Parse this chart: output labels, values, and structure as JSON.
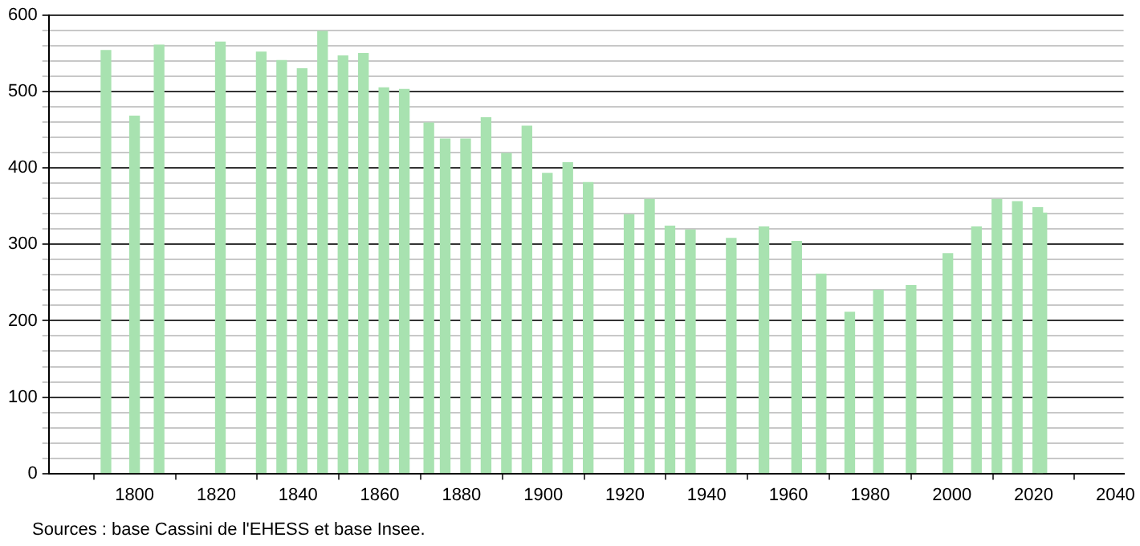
{
  "chart_data": {
    "type": "bar",
    "x": [
      1793,
      1800,
      1806,
      1821,
      1831,
      1836,
      1841,
      1846,
      1851,
      1856,
      1861,
      1866,
      1872,
      1876,
      1881,
      1886,
      1891,
      1896,
      1901,
      1906,
      1911,
      1921,
      1926,
      1931,
      1936,
      1946,
      1954,
      1962,
      1968,
      1975,
      1982,
      1990,
      1999,
      2006,
      2011,
      2016,
      2021,
      2022
    ],
    "values": [
      554,
      468,
      561,
      565,
      552,
      541,
      530,
      579,
      547,
      550,
      505,
      503,
      459,
      438,
      438,
      466,
      419,
      455,
      393,
      407,
      381,
      339,
      359,
      324,
      319,
      308,
      323,
      304,
      261,
      211,
      240,
      246,
      288,
      323,
      359,
      356,
      348,
      341
    ],
    "color": "#a8e2b0",
    "xlim": [
      1779,
      2042
    ],
    "xticks": [
      1800,
      1820,
      1840,
      1860,
      1880,
      1900,
      1920,
      1940,
      1960,
      1980,
      2000,
      2020,
      2040
    ],
    "ylim": [
      0,
      600
    ],
    "yticks": [
      0,
      {
        "value": 20,
        "label": null
      },
      {
        "value": 40,
        "label": null
      },
      {
        "value": 60,
        "label": null
      },
      {
        "value": 80,
        "label": null
      },
      100,
      {
        "value": 120,
        "label": null
      },
      {
        "value": 140,
        "label": null
      },
      {
        "value": 160,
        "label": null
      },
      {
        "value": 180,
        "label": null
      },
      200,
      {
        "value": 220,
        "label": null
      },
      {
        "value": 240,
        "label": null
      },
      {
        "value": 260,
        "label": null
      },
      {
        "value": 280,
        "label": null
      },
      300,
      {
        "value": 320,
        "label": null
      },
      {
        "value": 340,
        "label": null
      },
      {
        "value": 360,
        "label": null
      },
      {
        "value": 380,
        "label": null
      },
      400,
      {
        "value": 420,
        "label": null
      },
      {
        "value": 440,
        "label": null
      },
      {
        "value": 460,
        "label": null
      },
      {
        "value": 480,
        "label": null
      },
      500,
      {
        "value": 520,
        "label": null
      },
      {
        "value": 540,
        "label": null
      },
      {
        "value": 560,
        "label": null
      },
      {
        "value": 580,
        "label": null
      },
      600
    ],
    "grid": "y",
    "annotations": [
      "Sources : base Cassini de l'EHESS et base Insee."
    ]
  }
}
